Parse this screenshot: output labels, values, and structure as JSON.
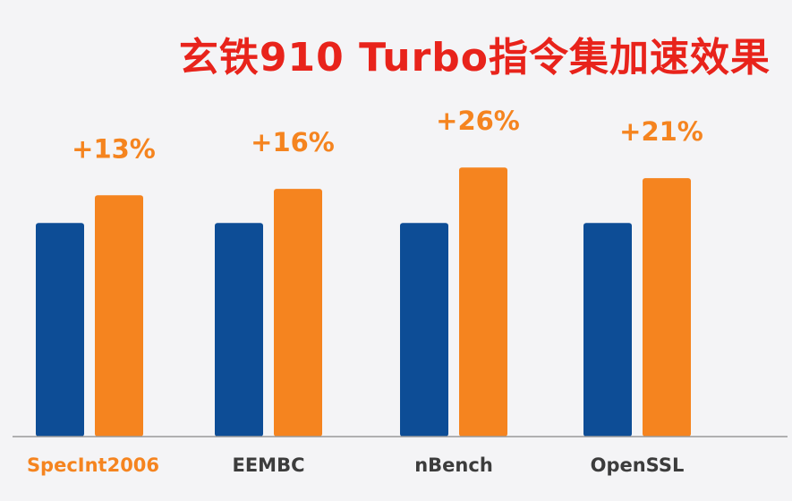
{
  "chart_data": {
    "type": "bar",
    "title": "玄铁910 Turbo指令集加速效果",
    "categories": [
      "SpecInt2006",
      "EEMBC",
      "nBench",
      "OpenSSL"
    ],
    "series": [
      {
        "values": [
          100,
          100,
          100,
          100
        ]
      },
      {
        "values": [
          113,
          116,
          126,
          121
        ]
      }
    ],
    "labels": [
      "+13%",
      "+16%",
      "+26%",
      "+21%"
    ],
    "ylim": [
      0,
      155
    ],
    "grid": false,
    "legend": "none"
  },
  "colors": {
    "title": "#e8231b",
    "baseline": "#0d4d96",
    "turbo": "#f5841f",
    "label": "#f5841f",
    "category": "#3c3c3c",
    "category_highlight": "#f5841f",
    "axis": "#9a9a9a"
  }
}
